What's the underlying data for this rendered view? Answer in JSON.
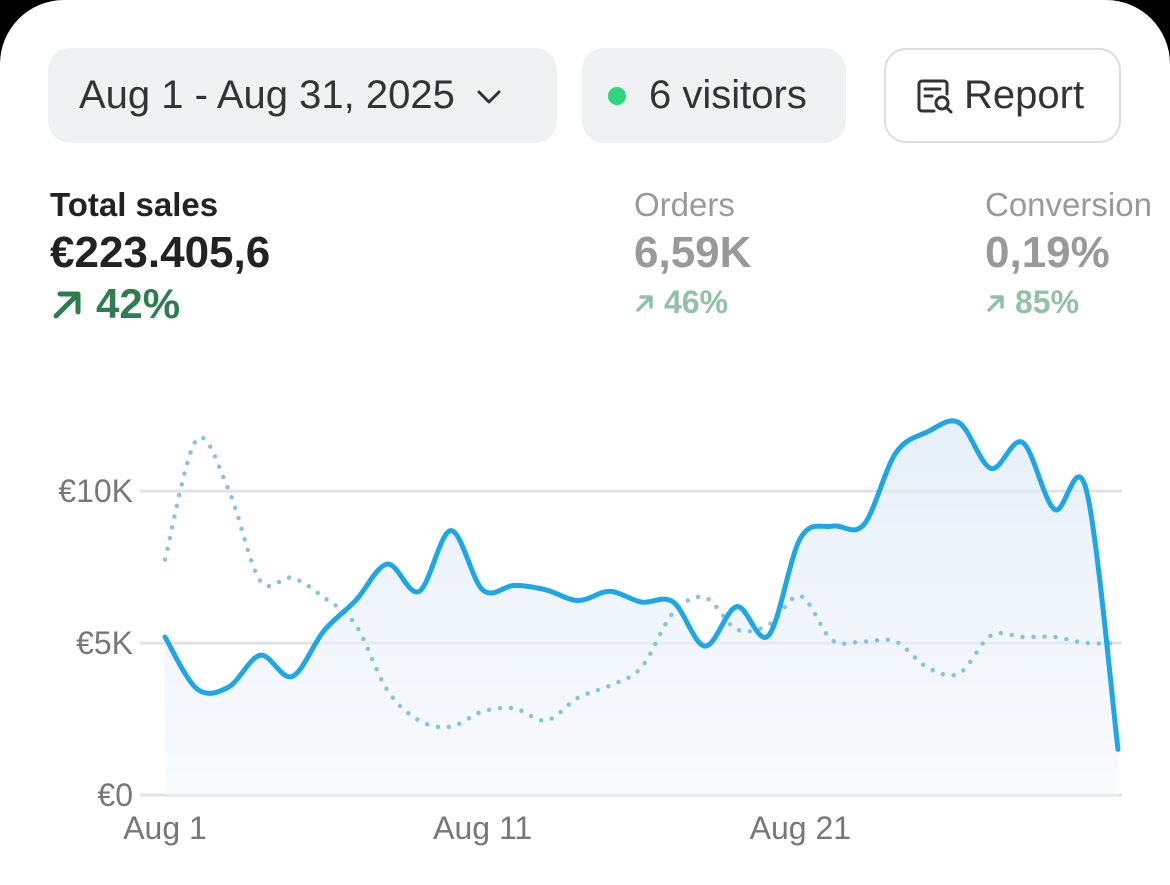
{
  "header": {
    "date_range": "Aug 1 - Aug 31, 2025",
    "visitors": "6 visitors",
    "report": "Report"
  },
  "metrics": [
    {
      "label": "Total sales",
      "value": "€223.405,6",
      "change": "42%"
    },
    {
      "label": "Orders",
      "value": "6,59K",
      "change": "46%"
    },
    {
      "label": "Conversion",
      "value": "0,19%",
      "change": "85%"
    }
  ],
  "chart_data": {
    "type": "line",
    "categories": [
      "Aug 1",
      null,
      null,
      null,
      null,
      null,
      null,
      null,
      null,
      null,
      "Aug 11",
      null,
      null,
      null,
      null,
      null,
      null,
      null,
      null,
      null,
      "Aug 21",
      null,
      null,
      null,
      null,
      null,
      null,
      null,
      null,
      null,
      null
    ],
    "series": [
      {
        "color": "#1ea7e4",
        "style": "solid",
        "area": true,
        "values": [
          5200,
          3500,
          3550,
          4600,
          3900,
          5400,
          6400,
          7600,
          6700,
          8700,
          6750,
          6900,
          6750,
          6400,
          6700,
          6350,
          6350,
          4900,
          6200,
          5250,
          8450,
          8850,
          8900,
          11250,
          11950,
          12250,
          10750,
          11600,
          9400,
          10050,
          1500
        ]
      },
      {
        "color": "#86c3e2",
        "style": "dotted",
        "values": [
          7750,
          11700,
          10050,
          7050,
          7150,
          6500,
          5600,
          3450,
          2450,
          2250,
          2750,
          2850,
          2450,
          3200,
          3600,
          4200,
          6000,
          6500,
          5450,
          5600,
          6550,
          5100,
          5050,
          5050,
          4200,
          4000,
          5250,
          5200,
          5200,
          5000,
          5000
        ]
      }
    ],
    "ylim": [
      0,
      13000
    ],
    "yticks": [
      {
        "value": 0,
        "label": "€0"
      },
      {
        "value": 5000,
        "label": "€5K"
      },
      {
        "value": 10000,
        "label": "€10K"
      }
    ],
    "grid": true
  }
}
